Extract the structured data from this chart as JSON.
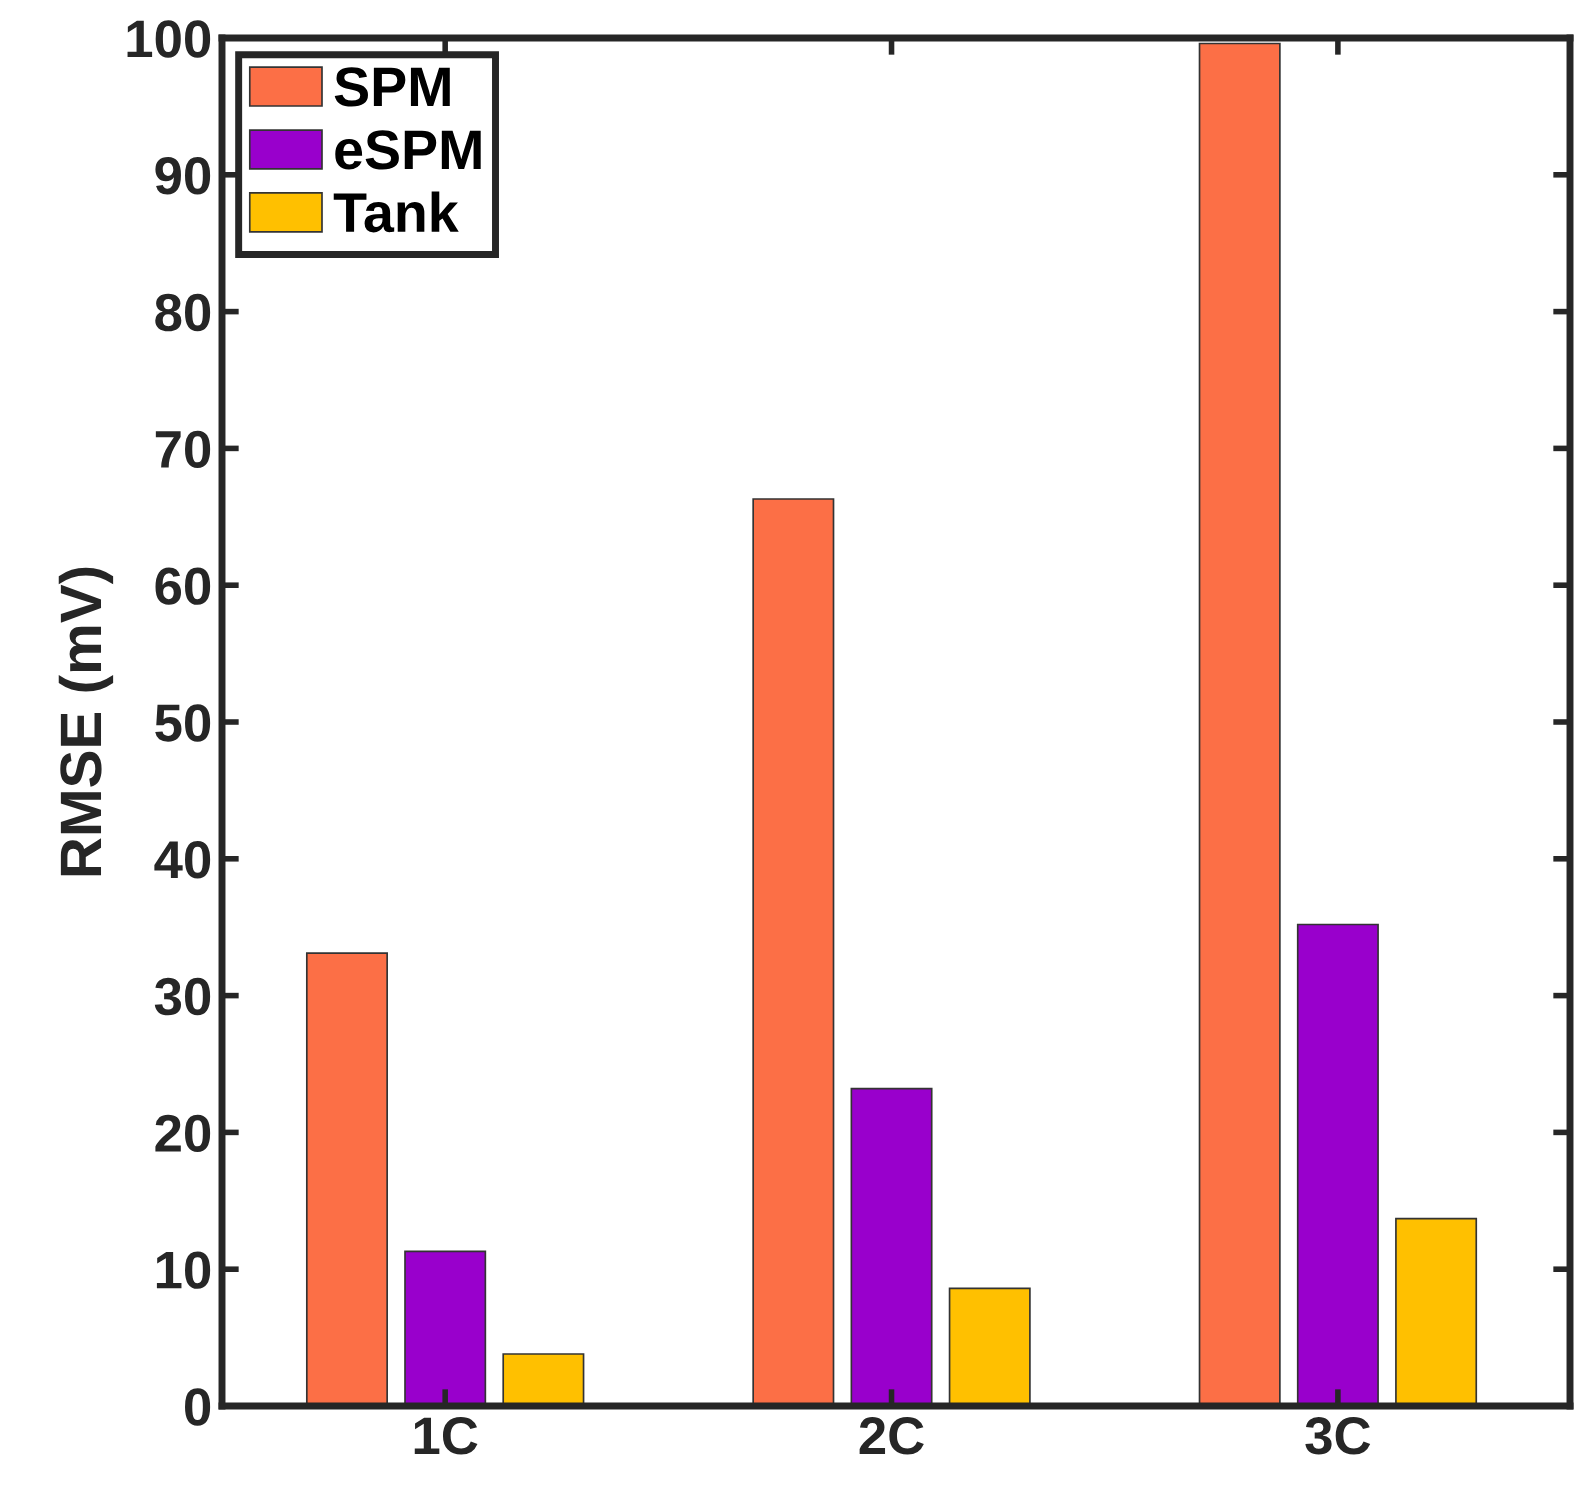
{
  "chart_data": {
    "type": "bar",
    "ylabel": "RMSE (mV)",
    "categories": [
      "1C",
      "2C",
      "3C"
    ],
    "series": [
      {
        "name": "SPM",
        "color": "#fc6f46",
        "values": [
          33.1,
          66.3,
          99.6
        ]
      },
      {
        "name": "eSPM",
        "color": "#9900cc",
        "values": [
          11.3,
          23.2,
          35.2
        ]
      },
      {
        "name": "Tank",
        "color": "#ffc000",
        "values": [
          3.8,
          8.6,
          13.7
        ]
      }
    ],
    "ylim": [
      0,
      100
    ],
    "yticks": [
      0,
      10,
      20,
      30,
      40,
      50,
      60,
      70,
      80,
      90,
      100
    ],
    "grid": false,
    "legend": "top left"
  }
}
